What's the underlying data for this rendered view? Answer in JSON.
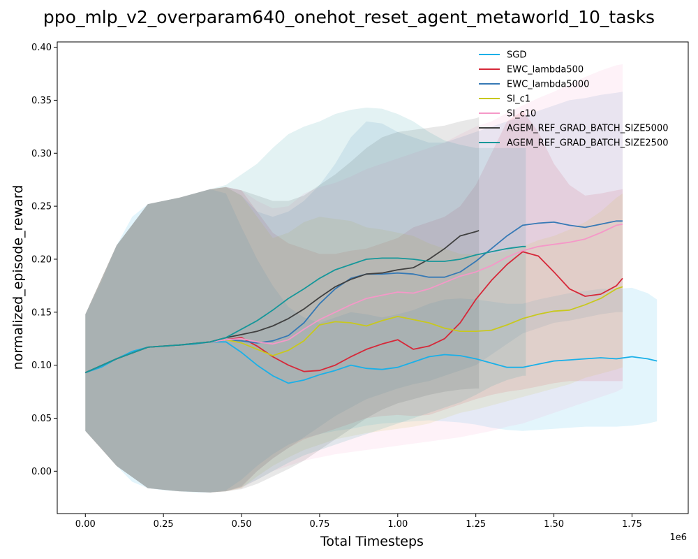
{
  "chart_data": {
    "type": "line",
    "title": "ppo_mlp_v2_overparam640_onehot_reset_agent_metaworld_10_tasks",
    "xlabel": "Total Timesteps",
    "ylabel": "normalized_episode_reward",
    "x_offset_label": "1e6",
    "xlim": [
      -0.09,
      1.93
    ],
    "ylim": [
      -0.04,
      0.405
    ],
    "x_ticks": [
      0.0,
      0.25,
      0.5,
      0.75,
      1.0,
      1.25,
      1.5,
      1.75
    ],
    "x_tick_labels": [
      "0.00",
      "0.25",
      "0.50",
      "0.75",
      "1.00",
      "1.25",
      "1.50",
      "1.75"
    ],
    "y_ticks": [
      0.0,
      0.05,
      0.1,
      0.15,
      0.2,
      0.25,
      0.3,
      0.35,
      0.4
    ],
    "y_tick_labels": [
      "0.00",
      "0.05",
      "0.10",
      "0.15",
      "0.20",
      "0.25",
      "0.30",
      "0.35",
      "0.40"
    ],
    "grid": false,
    "legend_position": "top-right",
    "shaded_bands": true,
    "series": [
      {
        "name": "SGD",
        "color": "#1ab0e8",
        "x": [
          0.0,
          0.05,
          0.1,
          0.15,
          0.2,
          0.25,
          0.3,
          0.35,
          0.4,
          0.45,
          0.5,
          0.55,
          0.6,
          0.65,
          0.7,
          0.75,
          0.8,
          0.85,
          0.9,
          0.95,
          1.0,
          1.05,
          1.1,
          1.15,
          1.2,
          1.25,
          1.3,
          1.35,
          1.4,
          1.45,
          1.5,
          1.55,
          1.6,
          1.65,
          1.7,
          1.75,
          1.8,
          1.83
        ],
        "y": [
          0.093,
          0.098,
          0.106,
          0.113,
          0.117,
          0.118,
          0.119,
          0.12,
          0.122,
          0.122,
          0.112,
          0.1,
          0.09,
          0.083,
          0.086,
          0.091,
          0.095,
          0.1,
          0.097,
          0.096,
          0.098,
          0.103,
          0.108,
          0.11,
          0.109,
          0.106,
          0.102,
          0.098,
          0.098,
          0.101,
          0.104,
          0.105,
          0.106,
          0.107,
          0.106,
          0.108,
          0.106,
          0.104
        ],
        "lower": [
          0.038,
          0.022,
          0.005,
          -0.01,
          -0.016,
          -0.018,
          -0.019,
          -0.02,
          -0.02,
          -0.018,
          -0.008,
          0.005,
          0.016,
          0.025,
          0.031,
          0.035,
          0.038,
          0.04,
          0.043,
          0.045,
          0.046,
          0.047,
          0.048,
          0.047,
          0.046,
          0.044,
          0.041,
          0.039,
          0.038,
          0.039,
          0.04,
          0.041,
          0.042,
          0.042,
          0.042,
          0.043,
          0.045,
          0.047
        ],
        "upper": [
          0.148,
          0.178,
          0.213,
          0.24,
          0.252,
          0.255,
          0.258,
          0.262,
          0.266,
          0.262,
          0.23,
          0.2,
          0.175,
          0.155,
          0.145,
          0.14,
          0.145,
          0.15,
          0.148,
          0.145,
          0.148,
          0.152,
          0.158,
          0.162,
          0.163,
          0.162,
          0.16,
          0.158,
          0.158,
          0.162,
          0.165,
          0.168,
          0.17,
          0.172,
          0.172,
          0.173,
          0.168,
          0.162
        ]
      },
      {
        "name": "EWC_lambda500",
        "color": "#d62839",
        "x": [
          0.0,
          0.1,
          0.2,
          0.3,
          0.4,
          0.45,
          0.5,
          0.55,
          0.6,
          0.65,
          0.7,
          0.75,
          0.8,
          0.85,
          0.9,
          0.95,
          1.0,
          1.05,
          1.1,
          1.15,
          1.2,
          1.25,
          1.3,
          1.35,
          1.4,
          1.45,
          1.5,
          1.55,
          1.6,
          1.65,
          1.7,
          1.72
        ],
        "y": [
          0.093,
          0.106,
          0.117,
          0.119,
          0.122,
          0.124,
          0.126,
          0.118,
          0.108,
          0.1,
          0.094,
          0.095,
          0.1,
          0.108,
          0.115,
          0.12,
          0.124,
          0.115,
          0.118,
          0.125,
          0.14,
          0.162,
          0.18,
          0.195,
          0.207,
          0.203,
          0.188,
          0.172,
          0.165,
          0.167,
          0.175,
          0.182
        ],
        "lower": [
          0.038,
          0.005,
          -0.016,
          -0.019,
          -0.02,
          -0.019,
          -0.015,
          0.0,
          0.012,
          0.022,
          0.03,
          0.035,
          0.04,
          0.045,
          0.05,
          0.052,
          0.053,
          0.052,
          0.053,
          0.058,
          0.063,
          0.068,
          0.072,
          0.075,
          0.077,
          0.08,
          0.083,
          0.085,
          0.085,
          0.085,
          0.085,
          0.085
        ],
        "upper": [
          0.148,
          0.213,
          0.252,
          0.258,
          0.266,
          0.268,
          0.265,
          0.245,
          0.225,
          0.215,
          0.21,
          0.205,
          0.205,
          0.208,
          0.21,
          0.215,
          0.22,
          0.23,
          0.235,
          0.24,
          0.25,
          0.27,
          0.3,
          0.33,
          0.34,
          0.32,
          0.29,
          0.27,
          0.26,
          0.262,
          0.265,
          0.266
        ]
      },
      {
        "name": "EWC_lambda5000",
        "color": "#3679b5",
        "x": [
          0.0,
          0.1,
          0.2,
          0.3,
          0.4,
          0.45,
          0.5,
          0.55,
          0.6,
          0.65,
          0.7,
          0.75,
          0.8,
          0.85,
          0.9,
          0.95,
          1.0,
          1.05,
          1.1,
          1.15,
          1.2,
          1.25,
          1.3,
          1.35,
          1.4,
          1.45,
          1.5,
          1.55,
          1.6,
          1.65,
          1.7,
          1.72
        ],
        "y": [
          0.093,
          0.106,
          0.117,
          0.119,
          0.122,
          0.124,
          0.123,
          0.121,
          0.123,
          0.128,
          0.14,
          0.158,
          0.172,
          0.182,
          0.186,
          0.186,
          0.187,
          0.186,
          0.183,
          0.183,
          0.188,
          0.198,
          0.21,
          0.222,
          0.232,
          0.234,
          0.235,
          0.232,
          0.23,
          0.233,
          0.236,
          0.236
        ],
        "lower": [
          0.038,
          0.005,
          -0.016,
          -0.019,
          -0.02,
          -0.019,
          -0.014,
          0.0,
          0.012,
          0.022,
          0.032,
          0.042,
          0.052,
          0.06,
          0.068,
          0.073,
          0.078,
          0.082,
          0.085,
          0.09,
          0.095,
          0.1,
          0.11,
          0.12,
          0.13,
          0.135,
          0.14,
          0.142,
          0.145,
          0.148,
          0.15,
          0.15
        ],
        "upper": [
          0.148,
          0.213,
          0.252,
          0.258,
          0.266,
          0.268,
          0.26,
          0.245,
          0.24,
          0.245,
          0.255,
          0.27,
          0.29,
          0.315,
          0.33,
          0.328,
          0.32,
          0.315,
          0.31,
          0.31,
          0.315,
          0.32,
          0.325,
          0.33,
          0.335,
          0.34,
          0.345,
          0.35,
          0.352,
          0.355,
          0.357,
          0.358
        ]
      },
      {
        "name": "SI_c1",
        "color": "#c8c81e",
        "x": [
          0.0,
          0.1,
          0.2,
          0.3,
          0.4,
          0.45,
          0.5,
          0.55,
          0.6,
          0.65,
          0.7,
          0.75,
          0.8,
          0.85,
          0.9,
          0.95,
          1.0,
          1.05,
          1.1,
          1.15,
          1.2,
          1.25,
          1.3,
          1.35,
          1.4,
          1.45,
          1.5,
          1.55,
          1.6,
          1.65,
          1.7,
          1.72
        ],
        "y": [
          0.093,
          0.106,
          0.117,
          0.119,
          0.122,
          0.124,
          0.121,
          0.115,
          0.109,
          0.114,
          0.123,
          0.138,
          0.141,
          0.14,
          0.137,
          0.142,
          0.146,
          0.143,
          0.14,
          0.135,
          0.132,
          0.132,
          0.133,
          0.138,
          0.144,
          0.148,
          0.151,
          0.152,
          0.157,
          0.163,
          0.172,
          0.174
        ],
        "lower": [
          0.038,
          0.005,
          -0.016,
          -0.019,
          -0.02,
          -0.019,
          -0.016,
          -0.005,
          0.005,
          0.013,
          0.02,
          0.025,
          0.03,
          0.033,
          0.036,
          0.038,
          0.04,
          0.042,
          0.045,
          0.05,
          0.055,
          0.058,
          0.062,
          0.066,
          0.07,
          0.074,
          0.078,
          0.082,
          0.088,
          0.092,
          0.096,
          0.098
        ],
        "upper": [
          0.148,
          0.213,
          0.252,
          0.258,
          0.266,
          0.268,
          0.26,
          0.24,
          0.22,
          0.225,
          0.235,
          0.24,
          0.238,
          0.236,
          0.23,
          0.228,
          0.225,
          0.222,
          0.215,
          0.21,
          0.205,
          0.205,
          0.205,
          0.208,
          0.212,
          0.218,
          0.222,
          0.228,
          0.235,
          0.245,
          0.258,
          0.262
        ]
      },
      {
        "name": "SI_c10",
        "color": "#f598c8",
        "x": [
          0.0,
          0.1,
          0.2,
          0.3,
          0.4,
          0.45,
          0.5,
          0.55,
          0.6,
          0.65,
          0.7,
          0.75,
          0.8,
          0.85,
          0.9,
          0.95,
          1.0,
          1.05,
          1.1,
          1.15,
          1.2,
          1.25,
          1.3,
          1.35,
          1.4,
          1.45,
          1.5,
          1.55,
          1.6,
          1.65,
          1.7,
          1.72
        ],
        "y": [
          0.093,
          0.106,
          0.117,
          0.119,
          0.122,
          0.124,
          0.125,
          0.122,
          0.12,
          0.124,
          0.134,
          0.143,
          0.15,
          0.157,
          0.163,
          0.166,
          0.169,
          0.168,
          0.172,
          0.178,
          0.184,
          0.188,
          0.194,
          0.202,
          0.208,
          0.212,
          0.214,
          0.216,
          0.219,
          0.225,
          0.232,
          0.233
        ],
        "lower": [
          0.038,
          0.005,
          -0.016,
          -0.019,
          -0.02,
          -0.019,
          -0.016,
          -0.008,
          0.0,
          0.005,
          0.01,
          0.013,
          0.016,
          0.018,
          0.02,
          0.022,
          0.024,
          0.026,
          0.028,
          0.03,
          0.032,
          0.035,
          0.038,
          0.042,
          0.045,
          0.05,
          0.055,
          0.06,
          0.065,
          0.07,
          0.075,
          0.078
        ],
        "upper": [
          0.148,
          0.213,
          0.252,
          0.258,
          0.266,
          0.268,
          0.265,
          0.255,
          0.248,
          0.25,
          0.262,
          0.268,
          0.272,
          0.278,
          0.285,
          0.29,
          0.295,
          0.3,
          0.305,
          0.31,
          0.318,
          0.325,
          0.33,
          0.338,
          0.345,
          0.352,
          0.358,
          0.365,
          0.372,
          0.378,
          0.383,
          0.384
        ]
      },
      {
        "name": "AGEM_REF_GRAD_BATCH_SIZE5000",
        "color": "#404040",
        "x": [
          0.0,
          0.1,
          0.2,
          0.3,
          0.4,
          0.45,
          0.5,
          0.55,
          0.6,
          0.65,
          0.7,
          0.75,
          0.8,
          0.85,
          0.9,
          0.95,
          1.0,
          1.05,
          1.1,
          1.15,
          1.2,
          1.25,
          1.26
        ],
        "y": [
          0.093,
          0.106,
          0.117,
          0.119,
          0.122,
          0.126,
          0.129,
          0.132,
          0.137,
          0.144,
          0.153,
          0.164,
          0.174,
          0.181,
          0.186,
          0.187,
          0.19,
          0.192,
          0.2,
          0.21,
          0.222,
          0.226,
          0.227
        ],
        "lower": [
          0.038,
          0.005,
          -0.016,
          -0.019,
          -0.02,
          -0.019,
          -0.017,
          -0.012,
          -0.005,
          0.002,
          0.01,
          0.02,
          0.03,
          0.04,
          0.05,
          0.058,
          0.064,
          0.068,
          0.072,
          0.075,
          0.077,
          0.078,
          0.078
        ],
        "upper": [
          0.148,
          0.213,
          0.252,
          0.258,
          0.266,
          0.268,
          0.265,
          0.26,
          0.255,
          0.255,
          0.26,
          0.27,
          0.28,
          0.292,
          0.305,
          0.315,
          0.32,
          0.322,
          0.324,
          0.326,
          0.33,
          0.333,
          0.334
        ]
      },
      {
        "name": "AGEM_REF_GRAD_BATCH_SIZE2500",
        "color": "#16979a",
        "x": [
          0.0,
          0.1,
          0.2,
          0.3,
          0.4,
          0.45,
          0.5,
          0.55,
          0.6,
          0.65,
          0.7,
          0.75,
          0.8,
          0.85,
          0.9,
          0.95,
          1.0,
          1.05,
          1.1,
          1.15,
          1.2,
          1.25,
          1.3,
          1.35,
          1.4,
          1.41
        ],
        "y": [
          0.093,
          0.106,
          0.117,
          0.119,
          0.122,
          0.126,
          0.134,
          0.142,
          0.152,
          0.163,
          0.172,
          0.182,
          0.19,
          0.195,
          0.2,
          0.201,
          0.201,
          0.2,
          0.198,
          0.198,
          0.2,
          0.204,
          0.207,
          0.21,
          0.212,
          0.212
        ],
        "lower": [
          0.038,
          0.005,
          -0.016,
          -0.019,
          -0.02,
          -0.019,
          -0.015,
          -0.008,
          0.0,
          0.008,
          0.015,
          0.02,
          0.025,
          0.03,
          0.035,
          0.04,
          0.045,
          0.05,
          0.055,
          0.06,
          0.065,
          0.072,
          0.08,
          0.086,
          0.09,
          0.09
        ],
        "upper": [
          0.148,
          0.213,
          0.252,
          0.258,
          0.266,
          0.27,
          0.28,
          0.29,
          0.305,
          0.318,
          0.325,
          0.33,
          0.337,
          0.341,
          0.343,
          0.342,
          0.337,
          0.33,
          0.32,
          0.312,
          0.308,
          0.305,
          0.305,
          0.305,
          0.305,
          0.305
        ]
      }
    ]
  }
}
